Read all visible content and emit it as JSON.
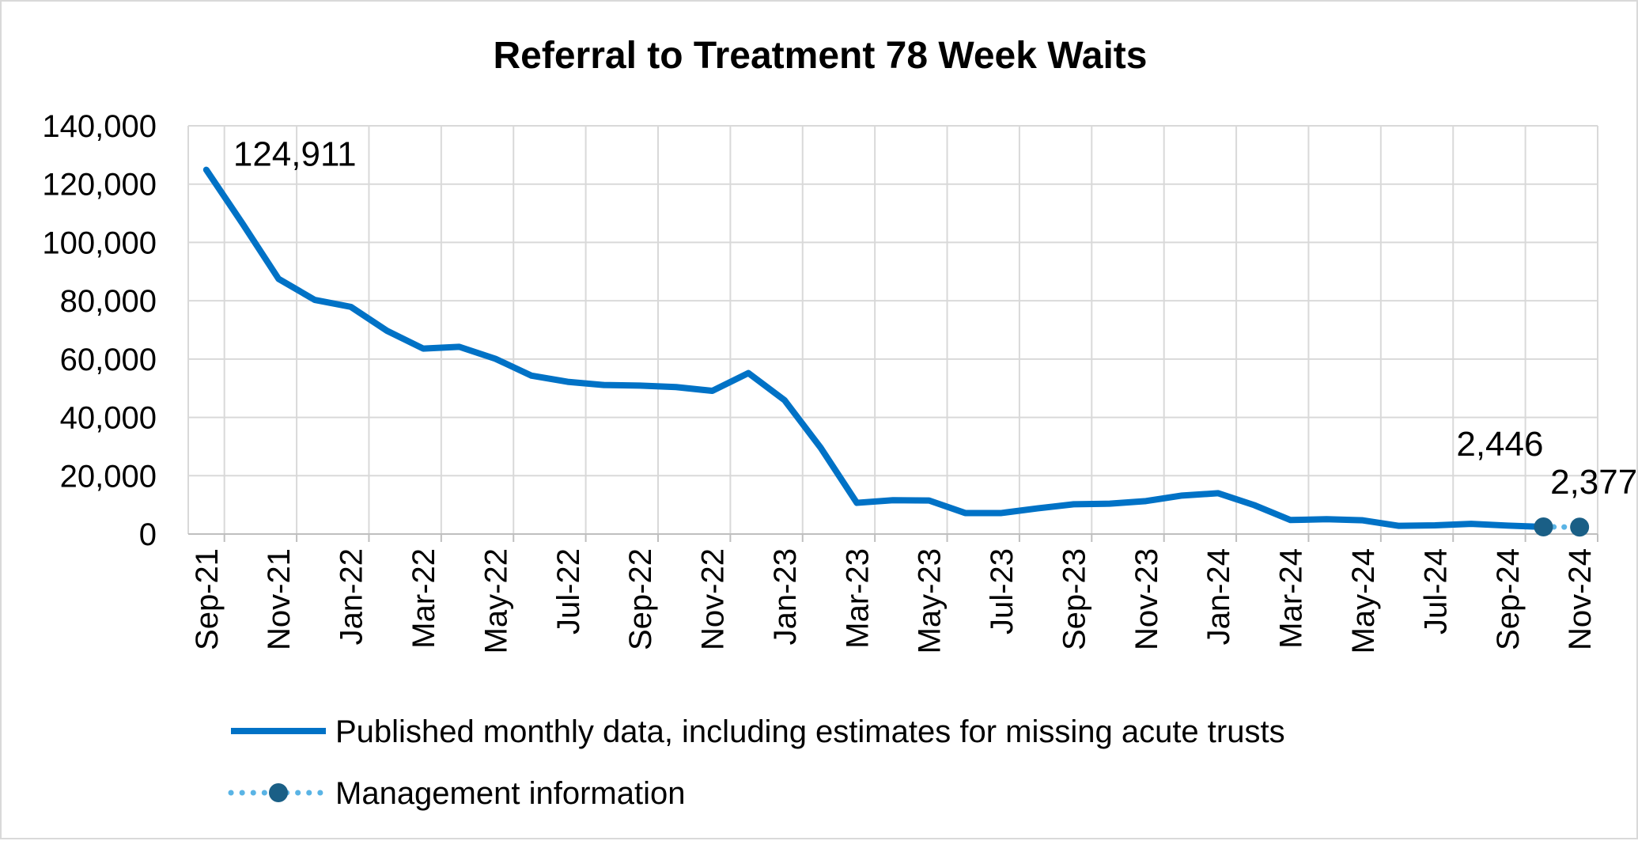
{
  "chart_data": {
    "type": "line",
    "title": "Referral to Treatment 78 Week Waits",
    "xlabel": "",
    "ylabel": "",
    "ylim": [
      0,
      140000
    ],
    "yticks": [
      0,
      20000,
      40000,
      60000,
      80000,
      100000,
      120000,
      140000
    ],
    "ytick_labels": [
      "0",
      "20,000",
      "40,000",
      "60,000",
      "80,000",
      "100,000",
      "120,000",
      "140,000"
    ],
    "x": [
      "Sep-21",
      "Oct-21",
      "Nov-21",
      "Dec-21",
      "Jan-22",
      "Feb-22",
      "Mar-22",
      "Apr-22",
      "May-22",
      "Jun-22",
      "Jul-22",
      "Aug-22",
      "Sep-22",
      "Oct-22",
      "Nov-22",
      "Dec-22",
      "Jan-23",
      "Feb-23",
      "Mar-23",
      "Apr-23",
      "May-23",
      "Jun-23",
      "Jul-23",
      "Aug-23",
      "Sep-23",
      "Oct-23",
      "Nov-23",
      "Dec-23",
      "Jan-24",
      "Feb-24",
      "Mar-24",
      "Apr-24",
      "May-24",
      "Jun-24",
      "Jul-24",
      "Aug-24",
      "Sep-24",
      "Oct-24",
      "Nov-24"
    ],
    "xtick_labels": [
      "Sep-21",
      "Nov-21",
      "Jan-22",
      "Mar-22",
      "May-22",
      "Jul-22",
      "Sep-22",
      "Nov-22",
      "Jan-23",
      "Mar-23",
      "May-23",
      "Jul-23",
      "Sep-23",
      "Nov-23",
      "Jan-24",
      "Mar-24",
      "May-24",
      "Jul-24",
      "Sep-24",
      "Nov-24"
    ],
    "grid": true,
    "legend_position": "bottom",
    "series": [
      {
        "name": "Published monthly data, including estimates for missing acute trusts",
        "style": "solid",
        "color": "#0072c6",
        "x": [
          "Sep-21",
          "Oct-21",
          "Nov-21",
          "Dec-21",
          "Jan-22",
          "Feb-22",
          "Mar-22",
          "Apr-22",
          "May-22",
          "Jun-22",
          "Jul-22",
          "Aug-22",
          "Sep-22",
          "Oct-22",
          "Nov-22",
          "Dec-22",
          "Jan-23",
          "Feb-23",
          "Mar-23",
          "Apr-23",
          "May-23",
          "Jun-23",
          "Jul-23",
          "Aug-23",
          "Sep-23",
          "Oct-23",
          "Nov-23",
          "Dec-23",
          "Jan-24",
          "Feb-24",
          "Mar-24",
          "Apr-24",
          "May-24",
          "Jun-24",
          "Jul-24",
          "Aug-24",
          "Sep-24",
          "Oct-24"
        ],
        "values": [
          124911,
          106500,
          87500,
          80300,
          77900,
          69700,
          63600,
          64200,
          60100,
          54300,
          52200,
          51100,
          50900,
          50400,
          49100,
          55200,
          45900,
          29600,
          10700,
          11600,
          11500,
          7200,
          7200,
          8800,
          10200,
          10400,
          11300,
          13200,
          14000,
          9900,
          4800,
          5100,
          4700,
          2800,
          3000,
          3500,
          2900,
          2446
        ]
      },
      {
        "name": "Management information",
        "style": "dotted-markers",
        "color": "#5ab4e5",
        "marker_color": "#1a5f86",
        "x": [
          "Oct-24",
          "Nov-24"
        ],
        "values": [
          2446,
          2377
        ]
      }
    ],
    "data_labels": [
      {
        "text": "124,911",
        "x": "Sep-21",
        "value": 124911
      },
      {
        "text": "2,446",
        "x": "Oct-24",
        "value": 2446
      },
      {
        "text": "2,377",
        "x": "Nov-24",
        "value": 2377
      }
    ]
  }
}
